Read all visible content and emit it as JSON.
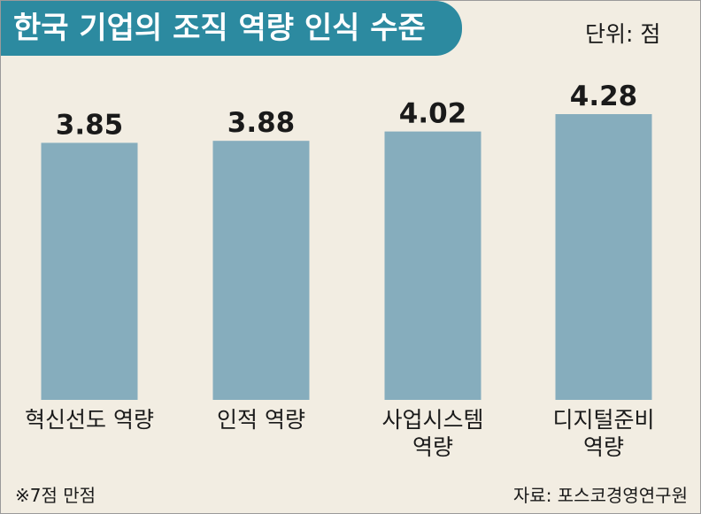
{
  "title": "한국 기업의 조직 역량 인식 수준",
  "unit": "단위: 점",
  "footnote": "※7점 만점",
  "source": "자료: 포스코경영연구원",
  "colors": {
    "banner": "#2c8aa0",
    "bar": "#86adbd",
    "background": "#f2ede2"
  },
  "chart_data": {
    "type": "bar",
    "title": "한국 기업의 조직 역량 인식 수준",
    "categories": [
      [
        "혁신선도 역량"
      ],
      [
        "인적 역량"
      ],
      [
        "사업시스템",
        "역량"
      ],
      [
        "디지털준비",
        "역량"
      ]
    ],
    "values": [
      3.85,
      3.88,
      4.02,
      4.28
    ],
    "value_labels": [
      "3.85",
      "3.88",
      "4.02",
      "4.28"
    ],
    "ylim": [
      0,
      4.28
    ],
    "grid": false,
    "legend": "none"
  }
}
